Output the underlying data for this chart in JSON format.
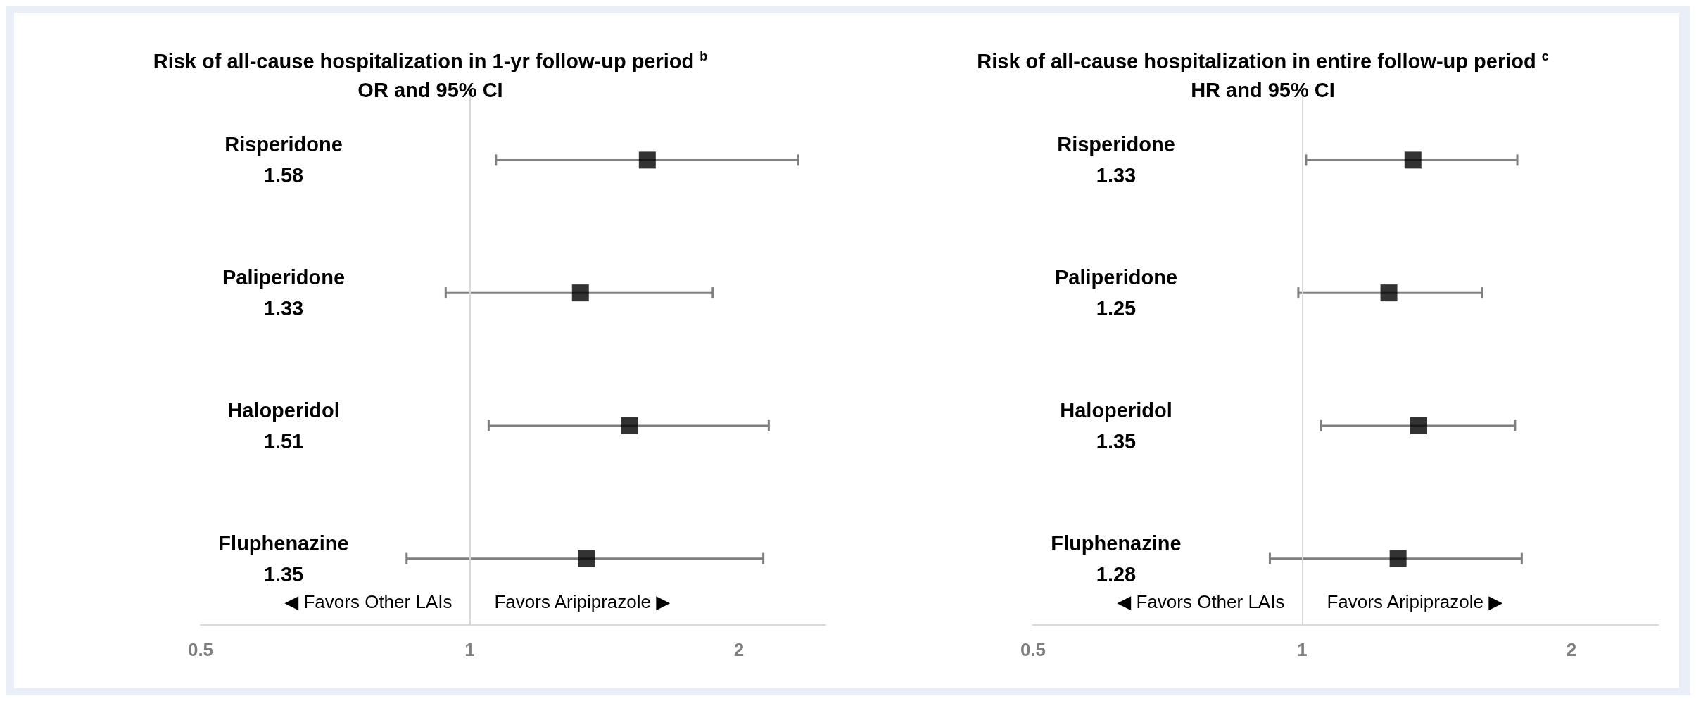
{
  "chart_data": [
    {
      "type": "scatter",
      "title": "Risk of all-cause hospitalization in 1-yr follow-up period $^{b}$",
      "subtitle": "OR and 95% CI",
      "orientation": "horizontal",
      "categories": [
        "Risperidone\n1.58",
        "Paliperidone\n1.33",
        "Haloperidol\n1.51",
        "Fluphenazine\n1.35"
      ],
      "values": [
        1.58,
        1.33,
        1.51,
        1.35
      ],
      "errors": [
        [
          1.07,
          2.33
        ],
        [
          0.94,
          1.87
        ],
        [
          1.05,
          2.16
        ],
        [
          0.85,
          2.13
        ]
      ],
      "color": "#000000",
      "marker": "square",
      "log": "x",
      "xlim": [
        0.5,
        2.5
      ],
      "xticks": [
        0.5,
        1,
        2
      ],
      "grid": false,
      "ref_lines": [
        {
          "axis": "x",
          "value": 1,
          "label": null,
          "color": "#d9d9d9"
        }
      ],
      "annotations": [
        "◀ Favors Other LAIs",
        "Favors Aripiprazole ▶"
      ]
    },
    {
      "type": "scatter",
      "title": "Risk of all-cause hospitalization in entire follow-up period $^{c}$",
      "subtitle": "HR and 95% CI",
      "orientation": "horizontal",
      "categories": [
        "Risperidone\n1.33",
        "Paliperidone\n1.25",
        "Haloperidol\n1.35",
        "Fluphenazine\n1.28"
      ],
      "values": [
        1.33,
        1.25,
        1.35,
        1.28
      ],
      "errors": [
        [
          1.01,
          1.74
        ],
        [
          0.99,
          1.59
        ],
        [
          1.05,
          1.73
        ],
        [
          0.92,
          1.76
        ]
      ],
      "color": "#000000",
      "marker": "square",
      "log": "x",
      "xlim": [
        0.5,
        2.5
      ],
      "xticks": [
        0.5,
        1,
        2
      ],
      "grid": false,
      "ref_lines": [
        {
          "axis": "x",
          "value": 1,
          "label": null,
          "color": "#d9d9d9"
        }
      ],
      "annotations": [
        "◀ Favors Other LAIs",
        "Favors Aripiprazole ▶"
      ]
    }
  ]
}
